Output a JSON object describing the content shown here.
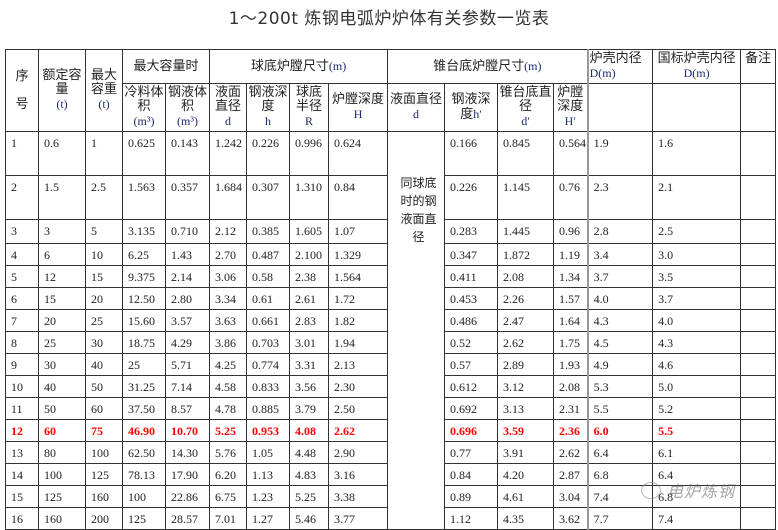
{
  "title": "1～200t 炼钢电弧炉炉体有关参数一览表",
  "headers": {
    "seq": {
      "a": "序",
      "b": "号"
    },
    "rated": {
      "label": "额定容量",
      "unit": "(t)"
    },
    "maxcap": {
      "label": "最大容重",
      "unit": "(t)"
    },
    "maxvol_group": "最大容量时",
    "cold_vol": {
      "label": "冷料体积",
      "unit": "(m³)"
    },
    "liquid_vol": {
      "label": "钢液体积",
      "unit": "(m³)"
    },
    "sphere_group": {
      "label": "球底炉膛尺寸",
      "unit": "(m)"
    },
    "sph_d": {
      "label": "液面直径",
      "sym": "d"
    },
    "sph_h": {
      "label": "钢液深度",
      "sym": "h"
    },
    "sph_r": {
      "label": "球底半径",
      "sym": "R"
    },
    "sph_H": {
      "label": "炉膛深度",
      "sym": "H"
    },
    "cone_group": {
      "label": "锥台底炉膛尺寸",
      "unit": "(m)"
    },
    "cone_d": {
      "label": "液面直径",
      "sym": "d"
    },
    "cone_h": {
      "label": "钢液深度",
      "sym": "h′"
    },
    "cone_d2": {
      "label": "锥台底直径",
      "sym": "d′"
    },
    "cone_H": {
      "label": "炉膛深度",
      "sym": "H′"
    },
    "shell_d": {
      "label": "炉壳内径",
      "unit": "D(m)"
    },
    "std_shell_d": {
      "label": "国标炉壳内径",
      "unit": "D(m)"
    },
    "remark": "备注"
  },
  "merged_note": "同球底时的钢液面直径",
  "rows": [
    {
      "no": "1",
      "rated": "0.6",
      "maxcap": "1",
      "cold": "0.625",
      "liquid": "0.143",
      "sd": "1.242",
      "sh": "0.226",
      "sr": "0.996",
      "sH": "0.624",
      "ch": "0.166",
      "cd2": "0.845",
      "cH": "0.564",
      "D": "1.9",
      "stdD": "1.6",
      "remark": ""
    },
    {
      "no": "2",
      "rated": "1.5",
      "maxcap": "2.5",
      "cold": "1.563",
      "liquid": "0.357",
      "sd": "1.684",
      "sh": "0.307",
      "sr": "1.310",
      "sH": "0.84",
      "ch": "0.226",
      "cd2": "1.145",
      "cH": "0.76",
      "D": "2.3",
      "stdD": "2.1",
      "remark": ""
    },
    {
      "no": "3",
      "rated": "3",
      "maxcap": "5",
      "cold": "3.135",
      "liquid": "0.710",
      "sd": "2.12",
      "sh": "0.385",
      "sr": "1.605",
      "sH": "1.07",
      "ch": "0.283",
      "cd2": "1.445",
      "cH": "0.96",
      "D": "2.8",
      "stdD": "2.5",
      "remark": ""
    },
    {
      "no": "4",
      "rated": "6",
      "maxcap": "10",
      "cold": "6.25",
      "liquid": "1.43",
      "sd": "2.70",
      "sh": "0.487",
      "sr": "2.100",
      "sH": "1.329",
      "ch": "0.347",
      "cd2": "1.872",
      "cH": "1.19",
      "D": "3.4",
      "stdD": "3.0",
      "remark": ""
    },
    {
      "no": "5",
      "rated": "12",
      "maxcap": "15",
      "cold": "9.375",
      "liquid": "2.14",
      "sd": "3.06",
      "sh": "0.58",
      "sr": "2.38",
      "sH": "1.564",
      "ch": "0.411",
      "cd2": "2.08",
      "cH": "1.34",
      "D": "3.7",
      "stdD": "3.5",
      "remark": ""
    },
    {
      "no": "6",
      "rated": "15",
      "maxcap": "20",
      "cold": "12.50",
      "liquid": "2.80",
      "sd": "3.34",
      "sh": "0.61",
      "sr": "2.61",
      "sH": "1.72",
      "ch": "0.453",
      "cd2": "2.26",
      "cH": "1.57",
      "D": "4.0",
      "stdD": "3.7",
      "remark": ""
    },
    {
      "no": "7",
      "rated": "20",
      "maxcap": "25",
      "cold": "15.60",
      "liquid": "3.57",
      "sd": "3.63",
      "sh": "0.661",
      "sr": "2.83",
      "sH": "1.82",
      "ch": "0.486",
      "cd2": "2.47",
      "cH": "1.64",
      "D": "4.3",
      "stdD": "4.0",
      "remark": ""
    },
    {
      "no": "8",
      "rated": "25",
      "maxcap": "30",
      "cold": "18.75",
      "liquid": "4.29",
      "sd": "3.86",
      "sh": "0.703",
      "sr": "3.01",
      "sH": "1.94",
      "ch": "0.52",
      "cd2": "2.62",
      "cH": "1.75",
      "D": "4.5",
      "stdD": "4.3",
      "remark": ""
    },
    {
      "no": "9",
      "rated": "30",
      "maxcap": "40",
      "cold": "25",
      "liquid": "5.71",
      "sd": "4.25",
      "sh": "0.774",
      "sr": "3.31",
      "sH": "2.13",
      "ch": "0.57",
      "cd2": "2.89",
      "cH": "1.93",
      "D": "4.9",
      "stdD": "4.6",
      "remark": ""
    },
    {
      "no": "10",
      "rated": "40",
      "maxcap": "50",
      "cold": "31.25",
      "liquid": "7.14",
      "sd": "4.58",
      "sh": "0.833",
      "sr": "3.56",
      "sH": "2.30",
      "ch": "0.612",
      "cd2": "3.12",
      "cH": "2.08",
      "D": "5.3",
      "stdD": "5.0",
      "remark": ""
    },
    {
      "no": "11",
      "rated": "50",
      "maxcap": "60",
      "cold": "37.50",
      "liquid": "8.57",
      "sd": "4.78",
      "sh": "0.885",
      "sr": "3.79",
      "sH": "2.50",
      "ch": "0.692",
      "cd2": "3.13",
      "cH": "2.31",
      "D": "5.5",
      "stdD": "5.2",
      "remark": ""
    },
    {
      "no": "12",
      "rated": "60",
      "maxcap": "75",
      "cold": "46.90",
      "liquid": "10.70",
      "sd": "5.25",
      "sh": "0.953",
      "sr": "4.08",
      "sH": "2.62",
      "ch": "0.696",
      "cd2": "3.59",
      "cH": "2.36",
      "D": "6.0",
      "stdD": "5.5",
      "remark": "",
      "highlight": true
    },
    {
      "no": "13",
      "rated": "80",
      "maxcap": "100",
      "cold": "62.50",
      "liquid": "14.30",
      "sd": "5.76",
      "sh": "1.05",
      "sr": "4.48",
      "sH": "2.90",
      "ch": "0.77",
      "cd2": "3.91",
      "cH": "2.62",
      "D": "6.4",
      "stdD": "6.1",
      "remark": ""
    },
    {
      "no": "14",
      "rated": "100",
      "maxcap": "125",
      "cold": "78.13",
      "liquid": "17.90",
      "sd": "6.20",
      "sh": "1.13",
      "sr": "4.83",
      "sH": "3.16",
      "ch": "0.84",
      "cd2": "4.20",
      "cH": "2.87",
      "D": "6.8",
      "stdD": "6.4",
      "remark": ""
    },
    {
      "no": "15",
      "rated": "125",
      "maxcap": "160",
      "cold": "100",
      "liquid": "22.86",
      "sd": "6.75",
      "sh": "1.23",
      "sr": "5.25",
      "sH": "3.38",
      "ch": "0.89",
      "cd2": "4.61",
      "cH": "3.04",
      "D": "7.4",
      "stdD": "6.8",
      "remark": ""
    },
    {
      "no": "16",
      "rated": "160",
      "maxcap": "200",
      "cold": "125",
      "liquid": "28.57",
      "sd": "7.01",
      "sh": "1.27",
      "sr": "5.46",
      "sH": "3.77",
      "ch": "1.12",
      "cd2": "4.35",
      "cH": "3.62",
      "D": "7.7",
      "stdD": "7.4",
      "remark": ""
    }
  ],
  "watermark": {
    "icon": "wechat-icon",
    "text": "电炉炼钢"
  },
  "colors": {
    "highlight": "#ff0000",
    "unit_text": "#1a2a6c",
    "border": "#333333"
  }
}
